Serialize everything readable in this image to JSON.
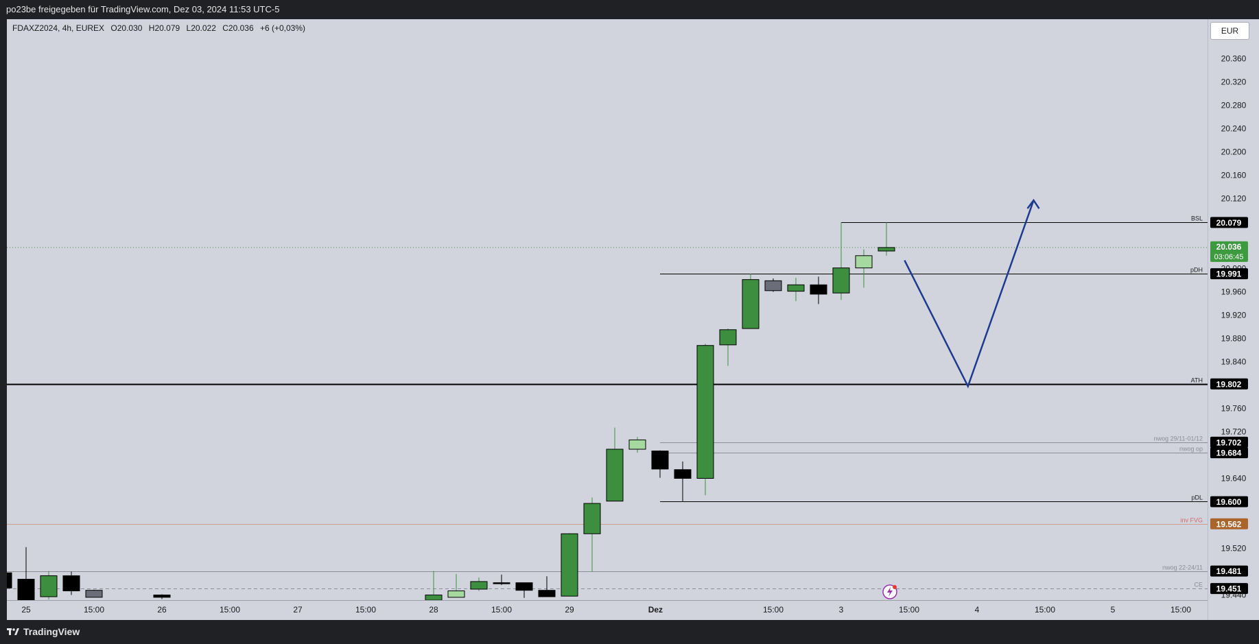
{
  "header": {
    "title": "po23be freigegeben für TradingView.com, Dez 03, 2024 11:53 UTC-5"
  },
  "legend": {
    "symbol": "FDAXZ2024, 4h, EUREX",
    "open": "O20.030",
    "high": "H20.079",
    "low": "L20.022",
    "close": "C20.036",
    "change": "+6 (+0,03%)"
  },
  "currency": "EUR",
  "footer": {
    "brand": "TradingView"
  },
  "colors": {
    "up": "#3d8f3f",
    "up_light": "#a6d9a0",
    "down": "#000000",
    "grey": "#6b6e78",
    "arrow": "#1c3b8f",
    "background": "#d1d4dc",
    "panel": "#1f2124",
    "price_last": "#3d9a3f",
    "inv_fvg": "#a9652b"
  },
  "chart_data": {
    "type": "candlestick",
    "yticks": [
      "20.360",
      "20.320",
      "20.280",
      "20.240",
      "20.200",
      "20.160",
      "20.120",
      "19.960",
      "19.920",
      "19.880",
      "19.840",
      "19.760",
      "19.720",
      "19.640",
      "19.520"
    ],
    "xticks": [
      {
        "label": "25",
        "x": 0
      },
      {
        "label": "15:00",
        "x": 3
      },
      {
        "label": "26",
        "x": 6
      },
      {
        "label": "15:00",
        "x": 9
      },
      {
        "label": "27",
        "x": 12
      },
      {
        "label": "15:00",
        "x": 15
      },
      {
        "label": "28",
        "x": 18
      },
      {
        "label": "15:00",
        "x": 21
      },
      {
        "label": "29",
        "x": 24
      },
      {
        "label": "Dez",
        "x": 27.8
      },
      {
        "label": "15:00",
        "x": 33
      },
      {
        "label": "3",
        "x": 36
      },
      {
        "label": "15:00",
        "x": 39
      },
      {
        "label": "4",
        "x": 42
      },
      {
        "label": "15:00",
        "x": 45
      },
      {
        "label": "5",
        "x": 48
      },
      {
        "label": "15:00",
        "x": 51
      }
    ],
    "candles": [
      {
        "x": -1,
        "o": 19.478,
        "c": 19.452,
        "h": 19.478,
        "l": 19.452,
        "style": "down"
      },
      {
        "x": 0,
        "o": 19.467,
        "c": 19.425,
        "h": 19.522,
        "l": 19.425,
        "style": "down"
      },
      {
        "x": 1,
        "o": 19.437,
        "c": 19.473,
        "h": 19.481,
        "l": 19.432,
        "style": "up"
      },
      {
        "x": 2,
        "o": 19.473,
        "c": 19.447,
        "h": 19.48,
        "l": 19.44,
        "style": "down"
      },
      {
        "x": 3,
        "o": 19.448,
        "c": 19.436,
        "h": 19.449,
        "l": 19.436,
        "style": "grey"
      },
      {
        "x": 6,
        "o": 19.44,
        "c": 19.436,
        "h": 19.441,
        "l": 19.433,
        "style": "down"
      },
      {
        "x": 18,
        "o": 19.431,
        "c": 19.44,
        "h": 19.481,
        "l": 19.431,
        "style": "up"
      },
      {
        "x": 19,
        "o": 19.436,
        "c": 19.447,
        "h": 19.476,
        "l": 19.436,
        "style": "uplight"
      },
      {
        "x": 20,
        "o": 19.45,
        "c": 19.463,
        "h": 19.47,
        "l": 19.447,
        "style": "up"
      },
      {
        "x": 21,
        "o": 19.461,
        "c": 19.46,
        "h": 19.475,
        "l": 19.457,
        "style": "down"
      },
      {
        "x": 22,
        "o": 19.461,
        "c": 19.448,
        "h": 19.461,
        "l": 19.435,
        "style": "down"
      },
      {
        "x": 23,
        "o": 19.448,
        "c": 19.437,
        "h": 19.472,
        "l": 19.437,
        "style": "down"
      },
      {
        "x": 24,
        "o": 19.438,
        "c": 19.545,
        "h": 19.546,
        "l": 19.438,
        "style": "up"
      },
      {
        "x": 25,
        "o": 19.545,
        "c": 19.597,
        "h": 19.607,
        "l": 19.48,
        "style": "up"
      },
      {
        "x": 26,
        "o": 19.601,
        "c": 19.69,
        "h": 19.727,
        "l": 19.601,
        "style": "up"
      },
      {
        "x": 27,
        "o": 19.69,
        "c": 19.706,
        "h": 19.711,
        "l": 19.684,
        "style": "uplight"
      },
      {
        "x": 28,
        "o": 19.687,
        "c": 19.656,
        "h": 19.688,
        "l": 19.641,
        "style": "down"
      },
      {
        "x": 29,
        "o": 19.655,
        "c": 19.64,
        "h": 19.669,
        "l": 19.6,
        "style": "down"
      },
      {
        "x": 30,
        "o": 19.64,
        "c": 19.868,
        "h": 19.871,
        "l": 19.611,
        "style": "up"
      },
      {
        "x": 31,
        "o": 19.869,
        "c": 19.895,
        "h": 19.897,
        "l": 19.833,
        "style": "up"
      },
      {
        "x": 32,
        "o": 19.897,
        "c": 19.981,
        "h": 19.991,
        "l": 19.897,
        "style": "up"
      },
      {
        "x": 33,
        "o": 19.979,
        "c": 19.962,
        "h": 19.983,
        "l": 19.96,
        "style": "grey"
      },
      {
        "x": 34,
        "o": 19.961,
        "c": 19.972,
        "h": 19.984,
        "l": 19.944,
        "style": "up"
      },
      {
        "x": 35,
        "o": 19.972,
        "c": 19.956,
        "h": 19.986,
        "l": 19.939,
        "style": "down"
      },
      {
        "x": 36,
        "o": 19.958,
        "c": 20.001,
        "h": 20.079,
        "l": 19.946,
        "style": "up"
      },
      {
        "x": 37,
        "o": 20.001,
        "c": 20.022,
        "h": 20.033,
        "l": 19.967,
        "style": "uplight"
      },
      {
        "x": 38,
        "o": 20.03,
        "c": 20.036,
        "h": 20.079,
        "l": 20.022,
        "style": "up"
      }
    ],
    "levels": [
      {
        "price": 20.079,
        "label": "BSL",
        "badge": "20.079",
        "x_from": 36,
        "weight": 1,
        "color": "#000000",
        "badge_bg": "#000000"
      },
      {
        "price": 19.991,
        "label": "pDH",
        "badge": "19.991",
        "x_from": 28,
        "weight": 1,
        "color": "#000000",
        "badge_bg": "#000000"
      },
      {
        "price": 19.802,
        "label": "ATH",
        "badge": "19.802",
        "x_from": -2,
        "weight": 2,
        "color": "#000000",
        "badge_bg": "#000000"
      },
      {
        "price": 19.702,
        "label": "nwog 29/11-01/12",
        "badge": "19.702",
        "x_from": 28,
        "weight": 1,
        "color": "#8a8d96",
        "badge_bg": "#000000"
      },
      {
        "price": 19.684,
        "label": "nwog op",
        "badge": "19.684",
        "x_from": 28,
        "weight": 1,
        "color": "#8a8d96",
        "badge_bg": "#000000"
      },
      {
        "price": 19.6,
        "label": "pDL",
        "badge": "19.600",
        "x_from": 28,
        "weight": 1,
        "color": "#000000",
        "badge_bg": "#000000"
      },
      {
        "price": 19.562,
        "label": "inv FVG",
        "badge": "19.562",
        "x_from": -2,
        "weight": 1,
        "color": "#c8a08e",
        "badge_bg": "#a9652b"
      },
      {
        "price": 19.481,
        "label": "nwog 22-24/11",
        "badge": "19.481",
        "x_from": -2,
        "weight": 1,
        "color": "#8a8d96",
        "badge_bg": "#000000"
      },
      {
        "price": 19.451,
        "label": "CE",
        "badge": "19.451",
        "x_from": -2,
        "weight": 1,
        "color": "#8a8d96",
        "badge_bg": "#000000",
        "dashed": true
      }
    ],
    "last_price": {
      "price": 20.036,
      "badge": "20.036",
      "countdown": "03:06:45"
    },
    "hidden_tick": {
      "price": 20.0,
      "label": "20.000"
    },
    "bottom_tick": {
      "price": 19.44,
      "label": "19.440"
    },
    "arrow_path": [
      {
        "x": 38.8,
        "y": 20.014
      },
      {
        "x": 41.6,
        "y": 19.798
      },
      {
        "x": 44.5,
        "y": 20.117
      }
    ]
  }
}
